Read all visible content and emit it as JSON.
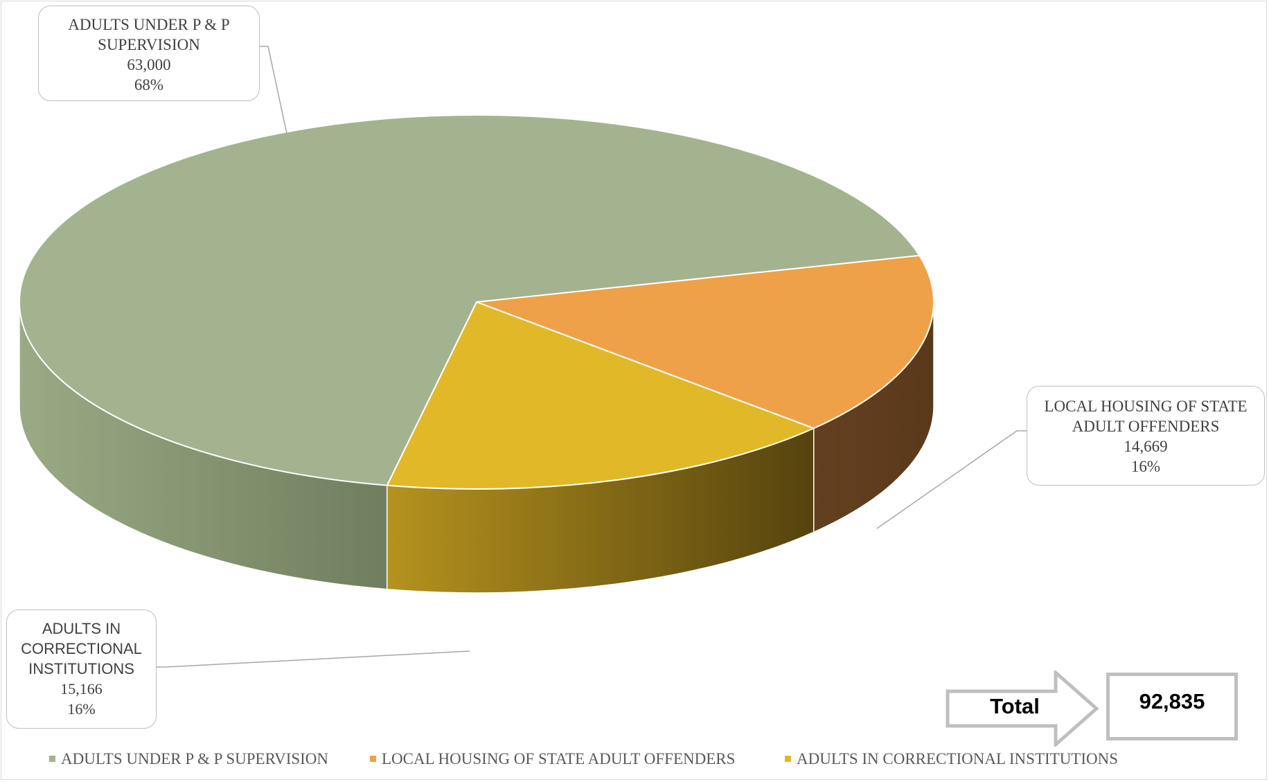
{
  "chart_data": {
    "type": "pie",
    "categories": [
      "ADULTS UNDER P & P SUPERVISION",
      "LOCAL HOUSING OF STATE ADULT OFFENDERS",
      "ADULTS IN CORRECTIONAL INSTITUTIONS"
    ],
    "values": [
      63000,
      14669,
      15166
    ],
    "percent_labels": [
      "68%",
      "16%",
      "16%"
    ],
    "value_labels": [
      "63,000",
      "14,669",
      "15,166"
    ],
    "colors": [
      "#a3b38f",
      "#eea148",
      "#e1b928"
    ],
    "side_colors": [
      "#8a9a76",
      "#5f3d1d",
      "#8f7417"
    ],
    "legend_position": "bottom",
    "style": "3d-pie"
  },
  "callouts": {
    "supervision": {
      "line1": "ADULTS UNDER P & P",
      "line2": "SUPERVISION",
      "value": "63,000",
      "percent": "68%"
    },
    "local_housing": {
      "line1": "LOCAL HOUSING OF STATE",
      "line2": "ADULT OFFENDERS",
      "value": "14,669",
      "percent": "16%"
    },
    "institutions": {
      "line1": "ADULTS IN",
      "line2": "CORRECTIONAL",
      "line3": "INSTITUTIONS",
      "value": "15,166",
      "percent": "16%"
    }
  },
  "total": {
    "label": "Total",
    "value": "92,835"
  },
  "legend": [
    {
      "label": "ADULTS UNDER P & P SUPERVISION",
      "color": "#a3b38f"
    },
    {
      "label": "LOCAL HOUSING OF STATE ADULT OFFENDERS",
      "color": "#eea148"
    },
    {
      "label": "ADULTS IN CORRECTIONAL INSTITUTIONS",
      "color": "#e1b928"
    }
  ]
}
